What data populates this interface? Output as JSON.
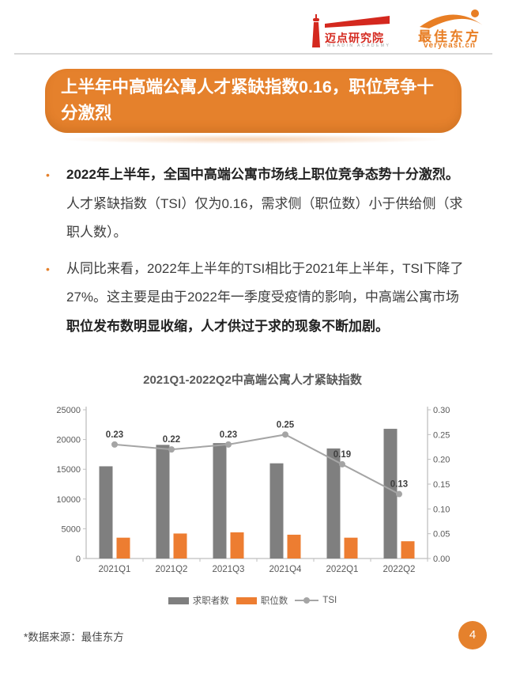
{
  "header": {
    "meadin": {
      "name_cn": "迈点研究院",
      "name_en": "MEADIN ACADEMY"
    },
    "veryeast": {
      "name_cn": "最佳东方",
      "domain": "veryeast.cn"
    }
  },
  "banner": {
    "title": "上半年中高端公寓人才紧缺指数0.16，职位竞争十分激烈"
  },
  "bullets": {
    "marker": "•",
    "items": [
      {
        "bold_lead": "2022年上半年，全国中高端公寓市场线上职位竞争态势十分激烈。",
        "regular": "人才紧缺指数（TSI）仅为0.16，需求侧（职位数）小于供给侧（求职人数）。",
        "bold_tail": ""
      },
      {
        "bold_lead": "",
        "regular": "从同比来看，2022年上半年的TSI相比于2021年上半年，TSI下降了27%。这主要是由于2022年一季度受疫情的影响，中高端公寓市场",
        "bold_tail": "职位发布数明显收缩，人才供过于求的现象不断加剧。"
      }
    ]
  },
  "chart_data": {
    "type": "combo_bar_line",
    "title": "2021Q1-2022Q2中高端公寓人才紧缺指数",
    "categories": [
      "2021Q1",
      "2021Q2",
      "2021Q3",
      "2021Q4",
      "2022Q1",
      "2022Q2"
    ],
    "series": [
      {
        "name": "求职者数",
        "type": "bar",
        "axis": "left",
        "color": "#7F7F7F",
        "values": [
          15500,
          19100,
          19400,
          16000,
          18500,
          21800
        ]
      },
      {
        "name": "职位数",
        "type": "bar",
        "axis": "left",
        "color": "#ED7D31",
        "values": [
          3500,
          4200,
          4400,
          4000,
          3500,
          2900
        ]
      },
      {
        "name": "TSI",
        "type": "line",
        "axis": "right",
        "color": "#A5A5A5",
        "values": [
          0.23,
          0.22,
          0.23,
          0.25,
          0.19,
          0.13
        ],
        "data_labels": [
          "0.23",
          "0.22",
          "0.23",
          "0.25",
          "0.19",
          "0.13"
        ]
      }
    ],
    "axes": {
      "left": {
        "min": 0,
        "max": 25000,
        "ticks": [
          "0",
          "5000",
          "10000",
          "15000",
          "20000",
          "25000"
        ]
      },
      "right": {
        "min": 0,
        "max": 0.3,
        "ticks": [
          "0.00",
          "0.05",
          "0.10",
          "0.15",
          "0.20",
          "0.25",
          "0.30"
        ]
      }
    },
    "grid": false,
    "legend_position": "bottom"
  },
  "footer": {
    "source_note": "*数据来源：最佳东方",
    "page_number": "4"
  },
  "colors": {
    "accent_orange": "#E5812C",
    "brand_red": "#D4281E",
    "brand_orange": "#E87E24",
    "bar_gray": "#7F7F7F",
    "bar_orange": "#ED7D31",
    "line_gray": "#A5A5A5"
  }
}
